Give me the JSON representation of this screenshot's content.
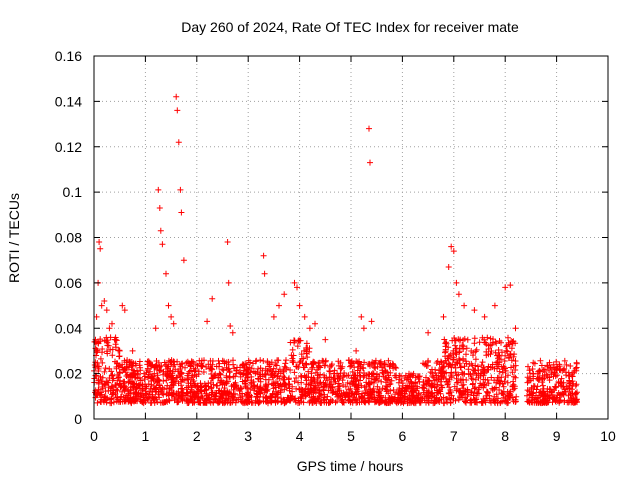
{
  "chart_data": {
    "type": "scatter",
    "title": "Day 260 of 2024, Rate Of TEC Index for receiver mate",
    "xlabel": "GPS time / hours",
    "ylabel": "ROTI / TECUs",
    "xlim": [
      0,
      10
    ],
    "ylim": [
      0,
      0.16
    ],
    "x_ticks": [
      0,
      1,
      2,
      3,
      4,
      5,
      6,
      7,
      8,
      9,
      10
    ],
    "y_ticks": [
      0,
      0.02,
      0.04,
      0.06,
      0.08,
      0.1,
      0.12,
      0.14,
      0.16
    ],
    "x_tick_labels": [
      "0",
      "1",
      "2",
      "3",
      "4",
      "5",
      "6",
      "7",
      "8",
      "9",
      "10"
    ],
    "y_tick_labels": [
      "0",
      "0.02",
      "0.04",
      "0.06",
      "0.08",
      "0.1",
      "0.12",
      "0.14",
      "0.16"
    ],
    "grid": true,
    "marker": "+",
    "color": "#ff0000",
    "series": [
      {
        "name": "ROTI",
        "x": [
          0.05,
          0.08,
          0.1,
          0.12,
          0.15,
          0.2,
          0.25,
          0.3,
          0.35,
          0.4,
          0.5,
          0.55,
          0.6,
          0.7,
          0.75,
          0.8,
          1.2,
          1.25,
          1.28,
          1.3,
          1.33,
          1.4,
          1.45,
          1.5,
          1.55,
          1.6,
          1.62,
          1.65,
          1.68,
          1.7,
          1.75,
          2.2,
          2.3,
          2.6,
          2.62,
          2.65,
          2.7,
          3.3,
          3.32,
          3.5,
          3.6,
          3.7,
          3.9,
          3.95,
          4.0,
          4.1,
          4.2,
          4.3,
          4.5,
          5.1,
          5.2,
          5.25,
          5.35,
          5.37,
          5.4,
          6.5,
          6.8,
          6.9,
          6.95,
          7.0,
          7.05,
          7.1,
          7.2,
          7.4,
          7.6,
          7.8,
          8.0,
          8.1,
          8.2
        ],
        "y": [
          0.045,
          0.06,
          0.078,
          0.075,
          0.05,
          0.052,
          0.048,
          0.04,
          0.042,
          0.035,
          0.03,
          0.05,
          0.048,
          0.025,
          0.03,
          0.02,
          0.04,
          0.101,
          0.093,
          0.083,
          0.077,
          0.064,
          0.05,
          0.045,
          0.042,
          0.142,
          0.136,
          0.122,
          0.101,
          0.091,
          0.07,
          0.043,
          0.053,
          0.078,
          0.06,
          0.041,
          0.038,
          0.072,
          0.064,
          0.045,
          0.05,
          0.055,
          0.06,
          0.058,
          0.05,
          0.045,
          0.04,
          0.042,
          0.035,
          0.03,
          0.045,
          0.04,
          0.128,
          0.113,
          0.043,
          0.038,
          0.045,
          0.067,
          0.076,
          0.074,
          0.06,
          0.055,
          0.05,
          0.048,
          0.045,
          0.05,
          0.058,
          0.059,
          0.04
        ],
        "baseline_noise": {
          "description": "dense band of ROTI values between roughly 0.005 and 0.035 TECUs across 0–9.4 hours, with a data gap near 8.2–8.4 h",
          "x_range": [
            0,
            9.4
          ],
          "y_range": [
            0.003,
            0.035
          ],
          "gap": [
            8.22,
            8.42
          ]
        }
      }
    ]
  }
}
